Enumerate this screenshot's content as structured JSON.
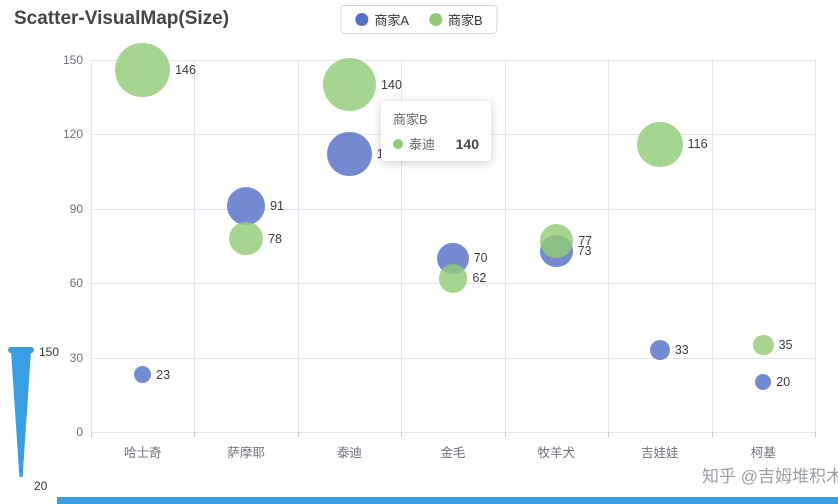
{
  "title": "Scatter-VisualMap(Size)",
  "legend": {
    "items": [
      {
        "label": "商家A",
        "color": "#5470c6"
      },
      {
        "label": "商家B",
        "color": "#91cc75"
      }
    ]
  },
  "tooltip": {
    "series": "商家B",
    "item_label": "泰迪",
    "item_value": "140",
    "dot_color": "#91cc75"
  },
  "visual_map": {
    "max_label": "150",
    "min_label": "20",
    "color": "#38a0e2"
  },
  "watermark": "知乎 @吉姆堆积木",
  "bottom_bar_color": "#38a0e2",
  "chart_data": {
    "type": "scatter",
    "title": "Scatter-VisualMap(Size)",
    "categories": [
      "哈士奇",
      "萨摩耶",
      "泰迪",
      "金毛",
      "牧羊犬",
      "吉娃娃",
      "柯基"
    ],
    "series": [
      {
        "name": "商家A",
        "color": "#5470c6",
        "values": [
          23,
          91,
          112,
          70,
          73,
          33,
          20
        ]
      },
      {
        "name": "商家B",
        "color": "#91cc75",
        "values": [
          146,
          78,
          140,
          62,
          77,
          116,
          35
        ]
      }
    ],
    "xlabel": "",
    "ylabel": "",
    "ylim": [
      0,
      150
    ],
    "yticks": [
      0,
      30,
      60,
      90,
      120,
      150
    ],
    "grid": true,
    "legend_position": "top-center",
    "size_mapping": {
      "min_value": 20,
      "max_value": 150
    }
  }
}
